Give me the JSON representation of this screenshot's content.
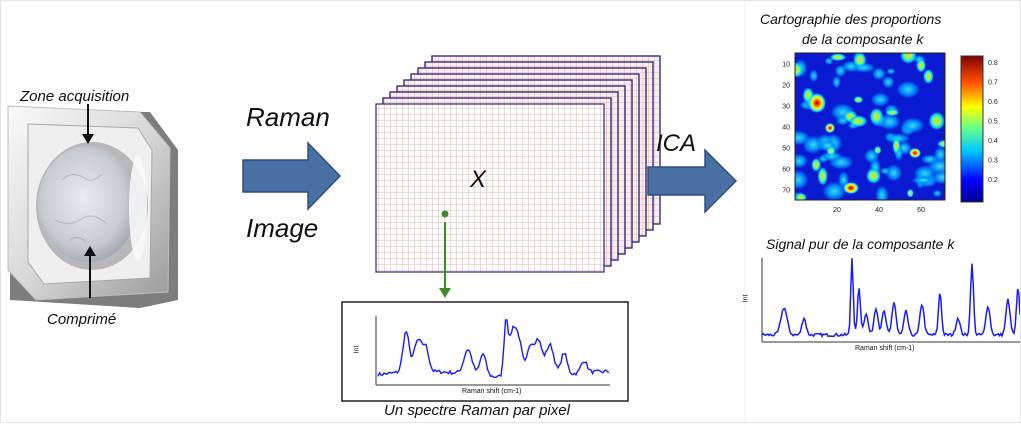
{
  "labels": {
    "zone_acquisition": "Zone acquisition",
    "comprime": "Comprimé",
    "raman": "Raman",
    "image": "Image",
    "x_matrix": "X",
    "ica": "ICA",
    "carto_title_line1": "Cartographie des proportions",
    "carto_title_line2": "de la composante k",
    "signal_title": "Signal pur de la composante k",
    "spectre_caption": "Un spectre Raman par pixel"
  },
  "spectrum_plot": {
    "ylabel": "Int",
    "xlabel": "Raman shift (cm-1)"
  },
  "pure_signal_plot": {
    "ylabel": "Int",
    "xlabel": "Raman shift (cm-1)"
  },
  "heatmap": {
    "y_ticks": [
      "10",
      "20",
      "30",
      "40",
      "50",
      "60",
      "70"
    ],
    "x_ticks": [
      "20",
      "40",
      "60"
    ],
    "colorbar_ticks": [
      "0.8",
      "0.7",
      "0.6",
      "0.5",
      "0.4",
      "0.3",
      "0.2"
    ]
  },
  "colors": {
    "arrow_fill": "#4a6fa5",
    "arrow_stroke": "#2f4f7f",
    "grid_line": "#e3a0a0",
    "stack_border": "#2a2a7a",
    "spectrum_line": "#1a1aff",
    "marker": "#3d8a2a"
  }
}
